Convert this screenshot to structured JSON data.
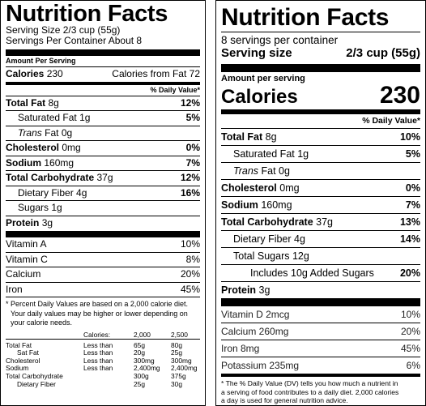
{
  "old_label": {
    "title": "Nutrition Facts",
    "serving_size": "Serving Size 2/3 cup (55g)",
    "servings_per_container": "Servings Per Container About 8",
    "amount_per_serving": "Amount Per Serving",
    "calories_label": "Calories",
    "calories_value": "230",
    "calories_from_fat": "Calories from Fat 72",
    "dv_header": "% Daily Value*",
    "nutrients": [
      {
        "name": "Total Fat",
        "amount": "8g",
        "dv": "12%"
      },
      {
        "name": "Saturated Fat",
        "amount": "1g",
        "dv": "5%"
      },
      {
        "name": "Trans",
        "amount": "Fat 0g",
        "dv": ""
      },
      {
        "name": "Cholesterol",
        "amount": "0mg",
        "dv": "0%"
      },
      {
        "name": "Sodium",
        "amount": "160mg",
        "dv": "7%"
      },
      {
        "name": "Total Carbohydrate",
        "amount": "37g",
        "dv": "12%"
      },
      {
        "name": "Dietary Fiber",
        "amount": "4g",
        "dv": "16%"
      },
      {
        "name": "Sugars",
        "amount": "1g",
        "dv": ""
      },
      {
        "name": "Protein",
        "amount": "3g",
        "dv": ""
      }
    ],
    "vitamins": [
      {
        "name": "Vitamin A",
        "dv": "10%"
      },
      {
        "name": "Vitamin C",
        "dv": "8%"
      },
      {
        "name": "Calcium",
        "dv": "20%"
      },
      {
        "name": "Iron",
        "dv": "45%"
      }
    ],
    "footnote_line1": "* Percent Daily Values are based on a 2,000 calorie diet.",
    "footnote_line2": "Your daily values may be higher or lower depending on",
    "footnote_line3": "your calorie needs.",
    "dv_table": {
      "header": [
        "",
        "Calories:",
        "2,000",
        "2,500"
      ],
      "rows": [
        [
          "Total Fat",
          "Less than",
          "65g",
          "80g"
        ],
        [
          "Sat Fat",
          "Less than",
          "20g",
          "25g"
        ],
        [
          "Cholesterol",
          "Less than",
          "300mg",
          "300mg"
        ],
        [
          "Sodium",
          "Less than",
          "2,400mg",
          "2,400mg"
        ],
        [
          "Total Carbohydrate",
          "",
          "300g",
          "375g"
        ],
        [
          "Dietary Fiber",
          "",
          "25g",
          "30g"
        ]
      ]
    }
  },
  "new_label": {
    "title": "Nutrition Facts",
    "servings_per_container": "8 servings per container",
    "serving_size_label": "Serving size",
    "serving_size_value": "2/3 cup (55g)",
    "amount_per_serving": "Amount per serving",
    "calories_label": "Calories",
    "calories_value": "230",
    "dv_header": "% Daily Value*",
    "nutrients": [
      {
        "name": "Total Fat",
        "amount": "8g",
        "dv": "10%"
      },
      {
        "name": "Saturated Fat",
        "amount": "1g",
        "dv": "5%"
      },
      {
        "name": "Trans",
        "amount": "Fat 0g",
        "dv": ""
      },
      {
        "name": "Cholesterol",
        "amount": "0mg",
        "dv": "0%"
      },
      {
        "name": "Sodium",
        "amount": "160mg",
        "dv": "7%"
      },
      {
        "name": "Total Carbohydrate",
        "amount": "37g",
        "dv": "13%"
      },
      {
        "name": "Dietary Fiber",
        "amount": "4g",
        "dv": "14%"
      },
      {
        "name": "Total Sugars",
        "amount": "12g",
        "dv": ""
      },
      {
        "name": "Includes 10g Added Sugars",
        "amount": "",
        "dv": "20%"
      },
      {
        "name": "Protein",
        "amount": "3g",
        "dv": ""
      }
    ],
    "vitamins": [
      {
        "name": "Vitamin D 2mcg",
        "dv": "10%"
      },
      {
        "name": "Calcium 260mg",
        "dv": "20%"
      },
      {
        "name": "Iron 8mg",
        "dv": "45%"
      },
      {
        "name": "Potassium 235mg",
        "dv": "6%"
      }
    ],
    "footnote_line1": "* The % Daily Value (DV) tells you how much a nutrient in",
    "footnote_line2": "a serving of food contributes to a daily diet. 2,000 calories",
    "footnote_line3": "a day is used for general nutrition advice."
  }
}
